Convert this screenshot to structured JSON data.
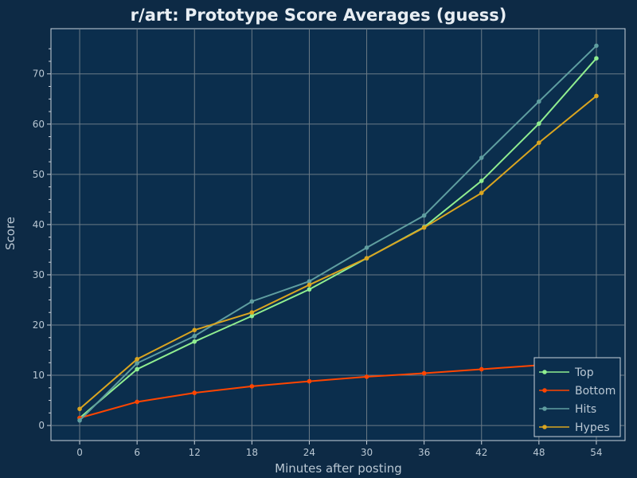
{
  "chart_data": {
    "type": "line",
    "title": "r/art: Prototype Score Averages (guess)",
    "xlabel": "Minutes after posting",
    "ylabel": "Score",
    "x": [
      0,
      6,
      12,
      18,
      24,
      30,
      36,
      42,
      48,
      54
    ],
    "x_ticks": [
      0,
      6,
      12,
      18,
      24,
      30,
      36,
      42,
      48,
      54
    ],
    "y_ticks": [
      0,
      10,
      20,
      30,
      40,
      50,
      60,
      70
    ],
    "xlim": [
      -3,
      57
    ],
    "ylim": [
      -3,
      79
    ],
    "grid": true,
    "legend_position": "bottom-right",
    "series": [
      {
        "name": "Top",
        "color": "#90ee90",
        "values": [
          1.5,
          11.2,
          16.7,
          21.8,
          27.1,
          33.3,
          39.5,
          48.7,
          60.1,
          73.1
        ]
      },
      {
        "name": "Bottom",
        "color": "#ff4500",
        "values": [
          1.5,
          4.7,
          6.5,
          7.8,
          8.8,
          9.7,
          10.4,
          11.2,
          12.0,
          12.7
        ]
      },
      {
        "name": "Hits",
        "color": "#5f9ea0",
        "values": [
          1.0,
          12.4,
          17.8,
          24.7,
          28.7,
          35.4,
          41.8,
          53.3,
          64.5,
          75.6
        ]
      },
      {
        "name": "Hypes",
        "color": "#daa520",
        "values": [
          3.3,
          13.2,
          19.0,
          22.5,
          28.0,
          33.3,
          39.4,
          46.3,
          56.3,
          65.6
        ]
      }
    ]
  }
}
